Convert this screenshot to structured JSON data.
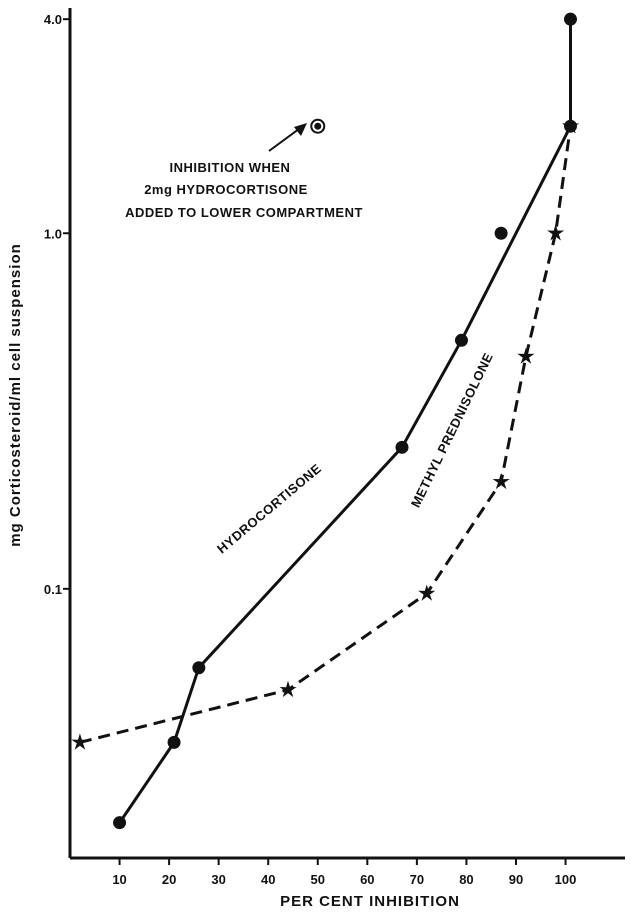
{
  "chart_data": {
    "type": "line",
    "title": "",
    "xlabel": "PER CENT INHIBITION",
    "ylabel": "mg Corticosteroid/ml cell suspension",
    "x_ticks": [
      10,
      20,
      30,
      40,
      50,
      60,
      70,
      80,
      90,
      100
    ],
    "y_ticks": [
      {
        "value": 0.1,
        "label": "0.1"
      },
      {
        "value": 1.0,
        "label": "1.0"
      },
      {
        "value": 4.0,
        "label": "4.0"
      }
    ],
    "y_scale": "log",
    "xlim": [
      0,
      112
    ],
    "ylim": [
      0.0175,
      4.3
    ],
    "grid": false,
    "legend": "none",
    "series": [
      {
        "name": "HYDROCORTISONE",
        "style": "solid",
        "marker": "circle",
        "color": "#111111",
        "x": [
          10,
          21,
          26,
          67,
          79,
          101,
          101
        ],
        "y": [
          0.022,
          0.037,
          0.06,
          0.25,
          0.5,
          2.0,
          4.0
        ]
      },
      {
        "name": "METHYL PREDNISOLONE",
        "style": "dashed",
        "marker": "star",
        "color": "#111111",
        "x": [
          2,
          44,
          72,
          87,
          92,
          98,
          101
        ],
        "y": [
          0.037,
          0.052,
          0.097,
          0.2,
          0.45,
          1.0,
          2.0
        ]
      }
    ],
    "extra_points": [
      {
        "x": 50,
        "y": 2.0,
        "marker": "circle-dot"
      }
    ],
    "annotations": {
      "inhibition_note": [
        "INHIBITION WHEN",
        "2mg HYDROCORTISONE",
        "ADDED TO LOWER COMPARTMENT"
      ]
    },
    "unplotted_points": [
      {
        "series": 0,
        "x": 87,
        "y": 1.0
      }
    ]
  }
}
